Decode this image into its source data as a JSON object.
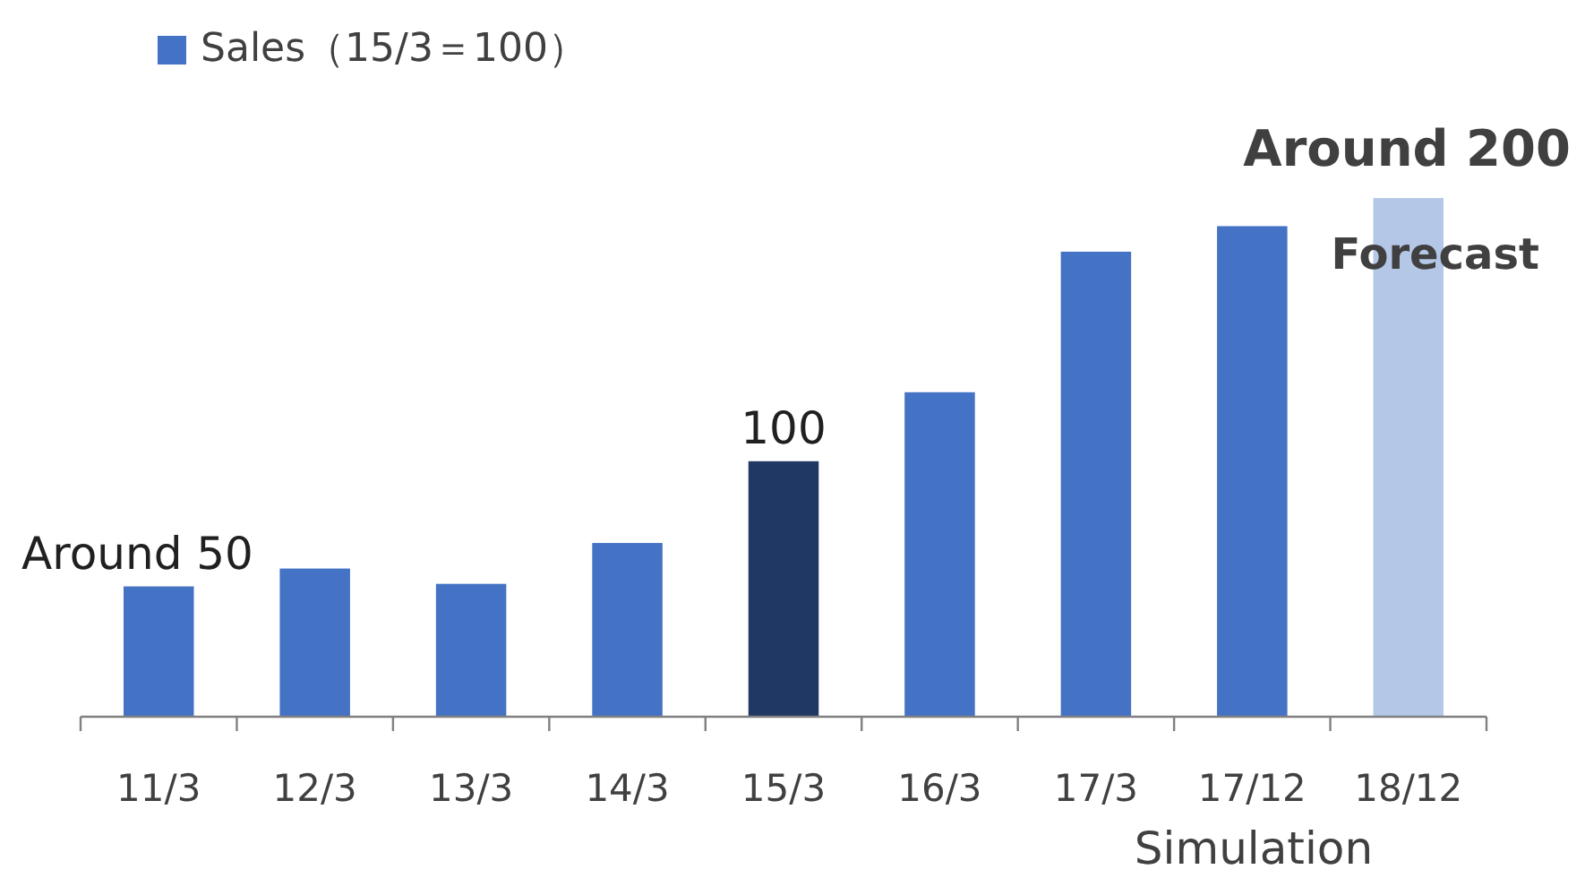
{
  "chart_data": {
    "type": "bar",
    "categories": [
      "11/3",
      "12/3",
      "13/3",
      "14/3",
      "15/3",
      "16/3",
      "17/3",
      "17/12",
      "18/12"
    ],
    "series": [
      {
        "name": "Sales（15/3＝100）",
        "color": "#4472c4",
        "colors": [
          "#4472c4",
          "#4472c4",
          "#4472c4",
          "#4472c4",
          "#203864",
          "#4472c4",
          "#4472c4",
          "#4472c4",
          "#b4c7e7"
        ],
        "values": [
          51,
          58,
          52,
          68,
          100,
          127,
          182,
          192,
          203
        ],
        "value_labels": [
          "Around 50",
          null,
          null,
          null,
          "100",
          null,
          null,
          null,
          "Around 200"
        ]
      }
    ],
    "annotations": [
      "Forecast",
      "Simulation"
    ],
    "legend": "top left"
  }
}
